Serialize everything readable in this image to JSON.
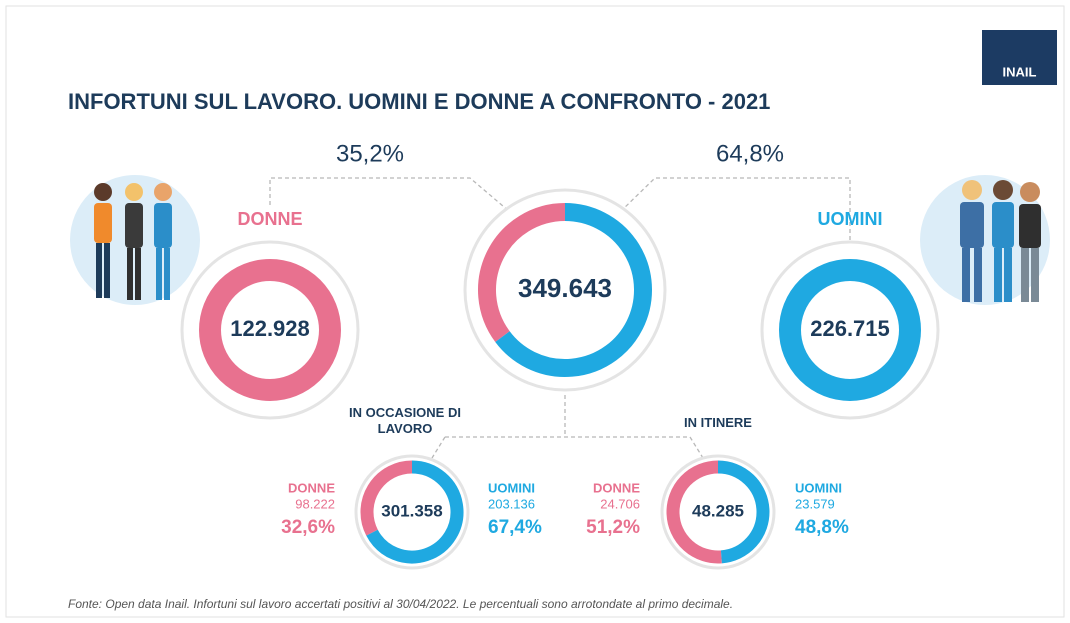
{
  "title": "INFORTUNI SUL LAVORO. UOMINI E DONNE A CONFRONTO - 2021",
  "logo": "INAIL",
  "source": "Fonte: Open data Inail. Infortuni sul lavoro accertati positivi al 30/04/2022. Le percentuali sono arrotondate al primo decimale.",
  "women": {
    "label": "DONNE",
    "total": "122.928",
    "color": "#e8718f"
  },
  "men": {
    "label": "UOMINI",
    "total": "226.715",
    "color": "#1fa9e1"
  },
  "chart_data": [
    {
      "type": "donut",
      "total": "349.643",
      "values": [
        35.2,
        64.8
      ],
      "value_labels": [
        "35,2%",
        "64,8%"
      ],
      "colors": [
        "#e8718f",
        "#1fa9e1"
      ]
    },
    {
      "type": "donut",
      "title": "IN OCCASIONE DI LAVORO",
      "total": "301.358",
      "categories": [
        "DONNE",
        "UOMINI"
      ],
      "counts": [
        "98.222",
        "203.136"
      ],
      "values": [
        32.6,
        67.4
      ],
      "value_labels": [
        "32,6%",
        "67,4%"
      ],
      "colors": [
        "#e8718f",
        "#1fa9e1"
      ]
    },
    {
      "type": "donut",
      "title": "IN ITINERE",
      "total": "48.285",
      "categories": [
        "DONNE",
        "UOMINI"
      ],
      "counts": [
        "24.706",
        "23.579"
      ],
      "values": [
        51.2,
        48.8
      ],
      "value_labels": [
        "51,2%",
        "48,8%"
      ],
      "colors": [
        "#e8718f",
        "#1fa9e1"
      ]
    }
  ]
}
